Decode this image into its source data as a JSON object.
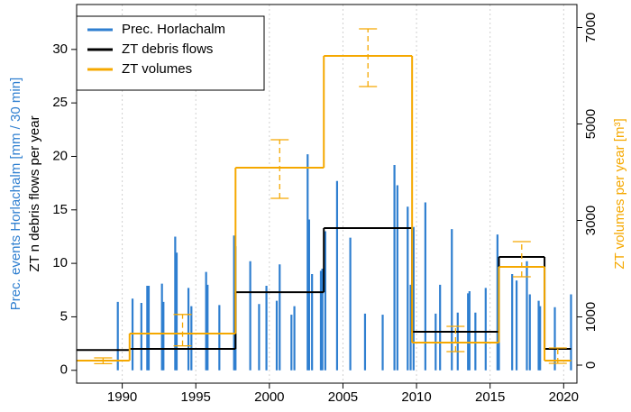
{
  "chart_data": {
    "type": "combo",
    "xlim": [
      1986.9,
      2020.9
    ],
    "xticks": [
      1990,
      1995,
      2000,
      2005,
      2010,
      2015,
      2020
    ],
    "ylim": [
      -1.2,
      34.2
    ],
    "yticks": [
      0,
      5,
      10,
      15,
      20,
      25,
      30
    ],
    "y2lim": [
      -374,
      7477
    ],
    "y2ticks": [
      0,
      1000,
      3000,
      5000,
      7000
    ],
    "ylabel": [
      {
        "text": "Prec. events Horlachalm [mm / 30 min]",
        "color": "#2f7fd0"
      },
      {
        "text": "ZT n debris flows per year",
        "color": "#000000"
      }
    ],
    "y2label": {
      "text": "ZT volumes per year [m³]",
      "color": "#f5a800"
    },
    "grid": true,
    "legend": "top-left",
    "series": [
      {
        "name": "Prec. Horlachalm",
        "color": "#2f7fd0",
        "type": "bar",
        "x": [
          1989.7,
          1990.7,
          1991.3,
          1991.7,
          1991.8,
          1992.7,
          1992.8,
          1993.6,
          1993.7,
          1994.5,
          1994.7,
          1995.7,
          1995.8,
          1996.6,
          1997.6,
          1997.7,
          1998.7,
          1999.3,
          1999.8,
          2000.5,
          2000.7,
          2001.5,
          2001.7,
          2002.6,
          2002.7,
          2002.9,
          2003.5,
          2003.6,
          2003.8,
          2004.6,
          2005.5,
          2006.5,
          2007.7,
          2008.5,
          2008.7,
          2009.4,
          2009.6,
          2009.8,
          2010.6,
          2011.3,
          2011.6,
          2012.4,
          2012.8,
          2013.5,
          2013.6,
          2014.0,
          2014.7,
          2015.5,
          2015.6,
          2016.5,
          2016.8,
          2017.5,
          2017.7,
          2018.3,
          2018.4,
          2019.4,
          2020.5
        ],
        "values": [
          6.4,
          6.7,
          6.3,
          7.9,
          7.9,
          8.1,
          6.4,
          12.5,
          11.0,
          7.7,
          6.0,
          9.2,
          8.0,
          6.1,
          12.6,
          11.6,
          10.2,
          6.2,
          7.9,
          6.5,
          9.9,
          5.2,
          6.0,
          20.2,
          14.1,
          9.0,
          9.3,
          9.5,
          13.0,
          17.7,
          12.4,
          5.3,
          5.2,
          19.2,
          17.3,
          15.3,
          8.0,
          13.4,
          15.7,
          5.3,
          8.0,
          13.2,
          5.4,
          7.2,
          7.4,
          5.4,
          7.7,
          12.7,
          9.8,
          9.0,
          8.4,
          10.2,
          7.1,
          6.5,
          6.0,
          5.9,
          7.1
        ]
      },
      {
        "name": "ZT debris flows",
        "color": "#000000",
        "type": "step",
        "x_start": [
          1986.9,
          1990.5,
          1997.7,
          2003.7,
          2009.7,
          2015.6,
          2018.7
        ],
        "x_end": [
          1990.5,
          1997.7,
          2003.7,
          2009.7,
          2015.6,
          2018.7,
          2020.5
        ],
        "values": [
          1.9,
          2.0,
          7.3,
          13.3,
          3.6,
          10.6,
          2.0
        ]
      },
      {
        "name": "ZT volumes",
        "color": "#f5a800",
        "type": "step",
        "axis": "y2",
        "x_start": [
          1986.9,
          1990.5,
          1997.7,
          2003.7,
          2009.7,
          2015.6,
          2018.7
        ],
        "x_end": [
          1990.5,
          1997.7,
          2003.7,
          2009.7,
          2015.6,
          2018.7,
          2020.5
        ],
        "values": [
          94,
          654,
          4093,
          6411,
          467,
          2037,
          94
        ],
        "error_low": [
          30,
          400,
          3458,
          5776,
          280,
          1832,
          37
        ],
        "error_high": [
          150,
          1050,
          4673,
          6972,
          804,
          2561,
          355
        ]
      }
    ]
  }
}
